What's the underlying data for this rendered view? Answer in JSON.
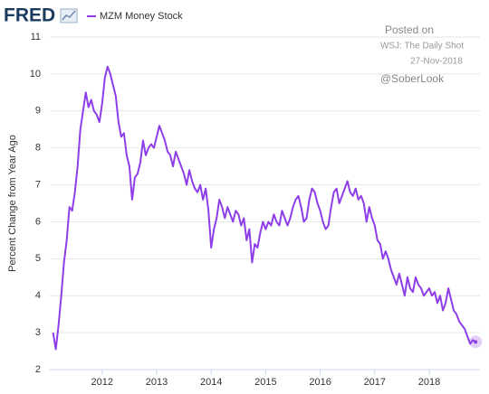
{
  "logo": "FRED",
  "chart_data": {
    "type": "line",
    "ylabel": "Percent Change from Year Ago",
    "annotations": [
      "Posted on",
      "WSJ: The Daily Shot",
      "27-Nov-2018",
      "@SoberLook"
    ],
    "xlim": [
      2011.04,
      2018.93
    ],
    "xticks": [
      2012,
      2013,
      2014,
      2015,
      2016,
      2017,
      2018
    ],
    "ylim": [
      2,
      11
    ],
    "yticks": [
      2,
      3,
      4,
      5,
      6,
      7,
      8,
      9,
      10,
      11
    ],
    "grid": true,
    "series": [
      {
        "name": "MZM Money Stock",
        "color": "#8e3ee8",
        "x": [
          2011.1,
          2011.15,
          2011.2,
          2011.25,
          2011.3,
          2011.35,
          2011.4,
          2011.45,
          2011.5,
          2011.55,
          2011.6,
          2011.65,
          2011.7,
          2011.75,
          2011.8,
          2011.85,
          2011.9,
          2011.95,
          2012,
          2012.05,
          2012.1,
          2012.15,
          2012.2,
          2012.25,
          2012.3,
          2012.35,
          2012.4,
          2012.45,
          2012.5,
          2012.55,
          2012.6,
          2012.65,
          2012.7,
          2012.75,
          2012.8,
          2012.85,
          2012.9,
          2012.95,
          2013,
          2013.05,
          2013.1,
          2013.15,
          2013.2,
          2013.25,
          2013.3,
          2013.35,
          2013.4,
          2013.45,
          2013.5,
          2013.55,
          2013.6,
          2013.65,
          2013.7,
          2013.75,
          2013.8,
          2013.85,
          2013.9,
          2013.95,
          2014,
          2014.05,
          2014.1,
          2014.15,
          2014.2,
          2014.25,
          2014.3,
          2014.35,
          2014.4,
          2014.45,
          2014.5,
          2014.55,
          2014.6,
          2014.65,
          2014.7,
          2014.75,
          2014.8,
          2014.85,
          2014.9,
          2014.95,
          2015,
          2015.05,
          2015.1,
          2015.15,
          2015.2,
          2015.25,
          2015.3,
          2015.35,
          2015.4,
          2015.45,
          2015.5,
          2015.55,
          2015.6,
          2015.65,
          2015.7,
          2015.75,
          2015.8,
          2015.85,
          2015.9,
          2015.95,
          2016,
          2016.05,
          2016.1,
          2016.15,
          2016.2,
          2016.25,
          2016.3,
          2016.35,
          2016.4,
          2016.45,
          2016.5,
          2016.55,
          2016.6,
          2016.65,
          2016.7,
          2016.75,
          2016.8,
          2016.85,
          2016.9,
          2016.95,
          2017,
          2017.05,
          2017.1,
          2017.15,
          2017.2,
          2017.25,
          2017.3,
          2017.35,
          2017.4,
          2017.45,
          2017.5,
          2017.55,
          2017.6,
          2017.65,
          2017.7,
          2017.75,
          2017.8,
          2017.85,
          2017.9,
          2017.95,
          2018,
          2018.05,
          2018.1,
          2018.15,
          2018.2,
          2018.25,
          2018.3,
          2018.35,
          2018.4,
          2018.45,
          2018.5,
          2018.55,
          2018.6,
          2018.65,
          2018.7,
          2018.75,
          2018.8,
          2018.85
        ],
        "values": [
          3.0,
          2.55,
          3.2,
          4.0,
          4.9,
          5.5,
          6.4,
          6.3,
          6.8,
          7.5,
          8.5,
          9.0,
          9.5,
          9.1,
          9.3,
          9.0,
          8.9,
          8.7,
          9.2,
          9.9,
          10.2,
          10.0,
          9.7,
          9.4,
          8.7,
          8.3,
          8.4,
          7.8,
          7.5,
          6.6,
          7.2,
          7.3,
          7.6,
          8.2,
          7.8,
          8.0,
          8.1,
          8.0,
          8.3,
          8.6,
          8.4,
          8.2,
          7.9,
          7.8,
          7.5,
          7.9,
          7.7,
          7.5,
          7.3,
          7.0,
          7.4,
          7.1,
          6.9,
          6.8,
          7.0,
          6.6,
          6.9,
          6.3,
          5.3,
          5.8,
          6.1,
          6.6,
          6.4,
          6.1,
          6.4,
          6.2,
          6.0,
          6.3,
          6.2,
          5.9,
          6.1,
          5.5,
          5.8,
          4.9,
          5.4,
          5.3,
          5.7,
          6.0,
          5.8,
          6.0,
          5.9,
          6.2,
          6.0,
          5.9,
          6.3,
          6.1,
          5.9,
          6.1,
          6.4,
          6.6,
          6.7,
          6.4,
          6.0,
          6.1,
          6.6,
          6.9,
          6.8,
          6.5,
          6.3,
          6.0,
          5.8,
          5.9,
          6.4,
          6.8,
          6.9,
          6.5,
          6.7,
          6.9,
          7.1,
          6.8,
          6.7,
          6.9,
          6.6,
          6.7,
          6.5,
          6.0,
          6.4,
          6.1,
          5.9,
          5.5,
          5.4,
          5.0,
          5.2,
          5.0,
          4.7,
          4.5,
          4.3,
          4.6,
          4.3,
          4.0,
          4.5,
          4.2,
          4.1,
          4.5,
          4.3,
          4.2,
          4.0,
          4.1,
          4.2,
          4.0,
          4.1,
          3.8,
          4.0,
          3.6,
          3.8,
          4.2,
          3.9,
          3.6,
          3.5,
          3.3,
          3.2,
          3.1,
          2.9,
          2.7,
          2.8,
          2.75
        ]
      }
    ]
  }
}
